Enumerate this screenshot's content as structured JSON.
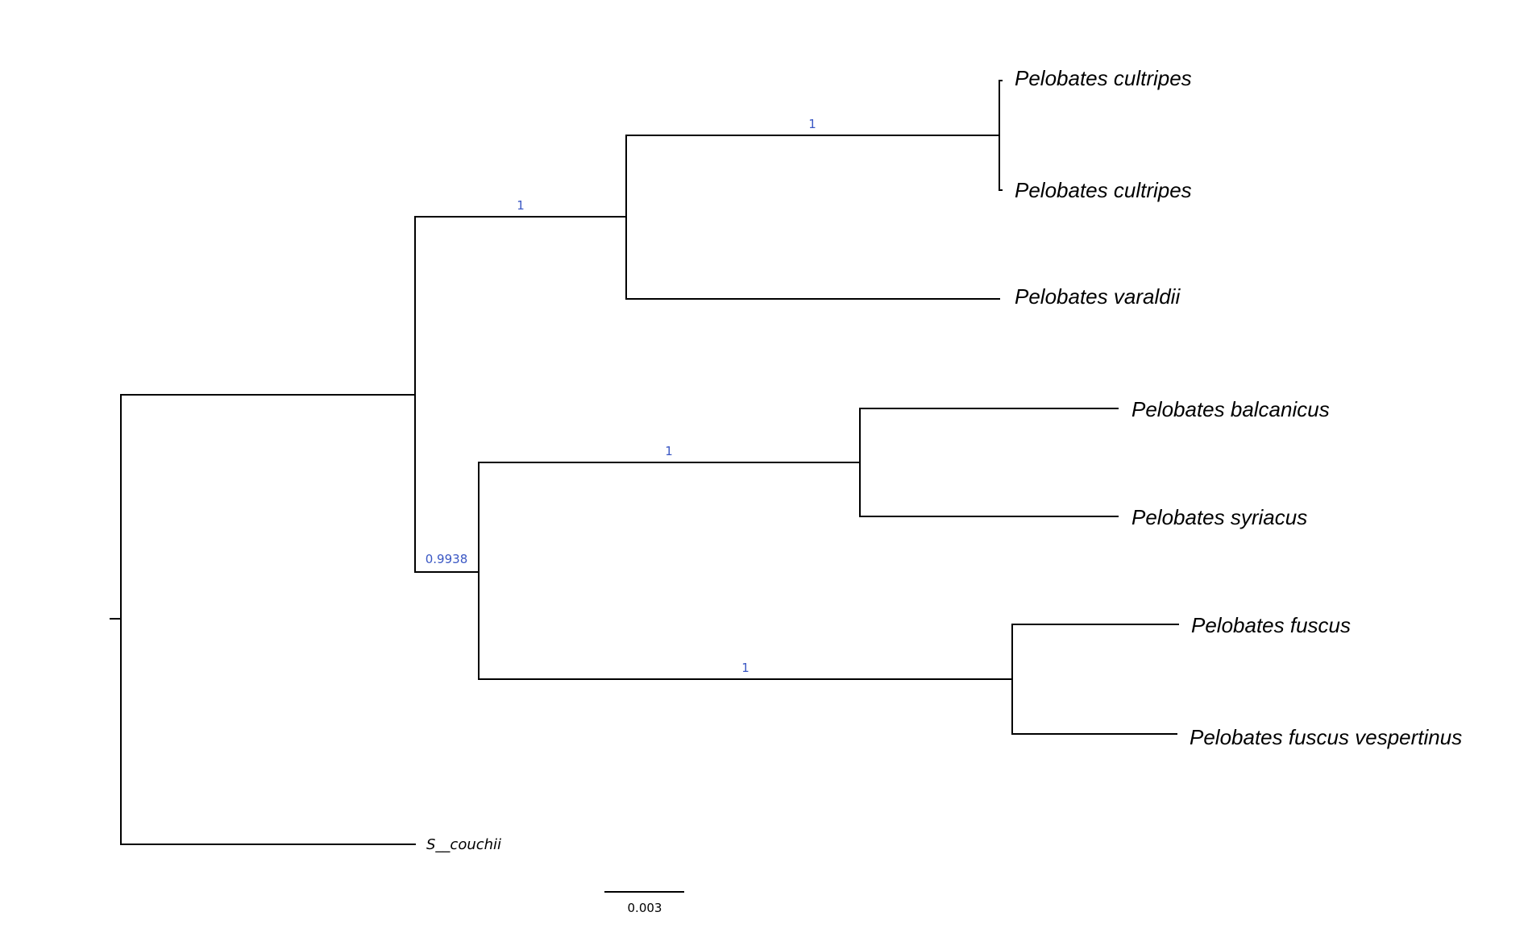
{
  "tree": {
    "taxa": {
      "cultripes_a": "Pelobates cultripes",
      "cultripes_b": "Pelobates cultripes",
      "varaldii": "Pelobates varaldii",
      "balcanicus": "Pelobates balcanicus",
      "syriacus": "Pelobates syriacus",
      "fuscus": "Pelobates fuscus",
      "fuscus_vespertinus": "Pelobates fuscus vespertinus",
      "couchii": "S__couchii"
    },
    "support": {
      "cultripes_clade": "1",
      "cultripes_varaldii_clade": "1",
      "eastern_clade": "0.9938",
      "balcanicus_syriacus_clade": "1",
      "fuscus_clade": "1"
    },
    "scale_bar": {
      "label": "0.003"
    },
    "colors": {
      "branch": "#000000",
      "support_label": "#3a57c4"
    }
  }
}
